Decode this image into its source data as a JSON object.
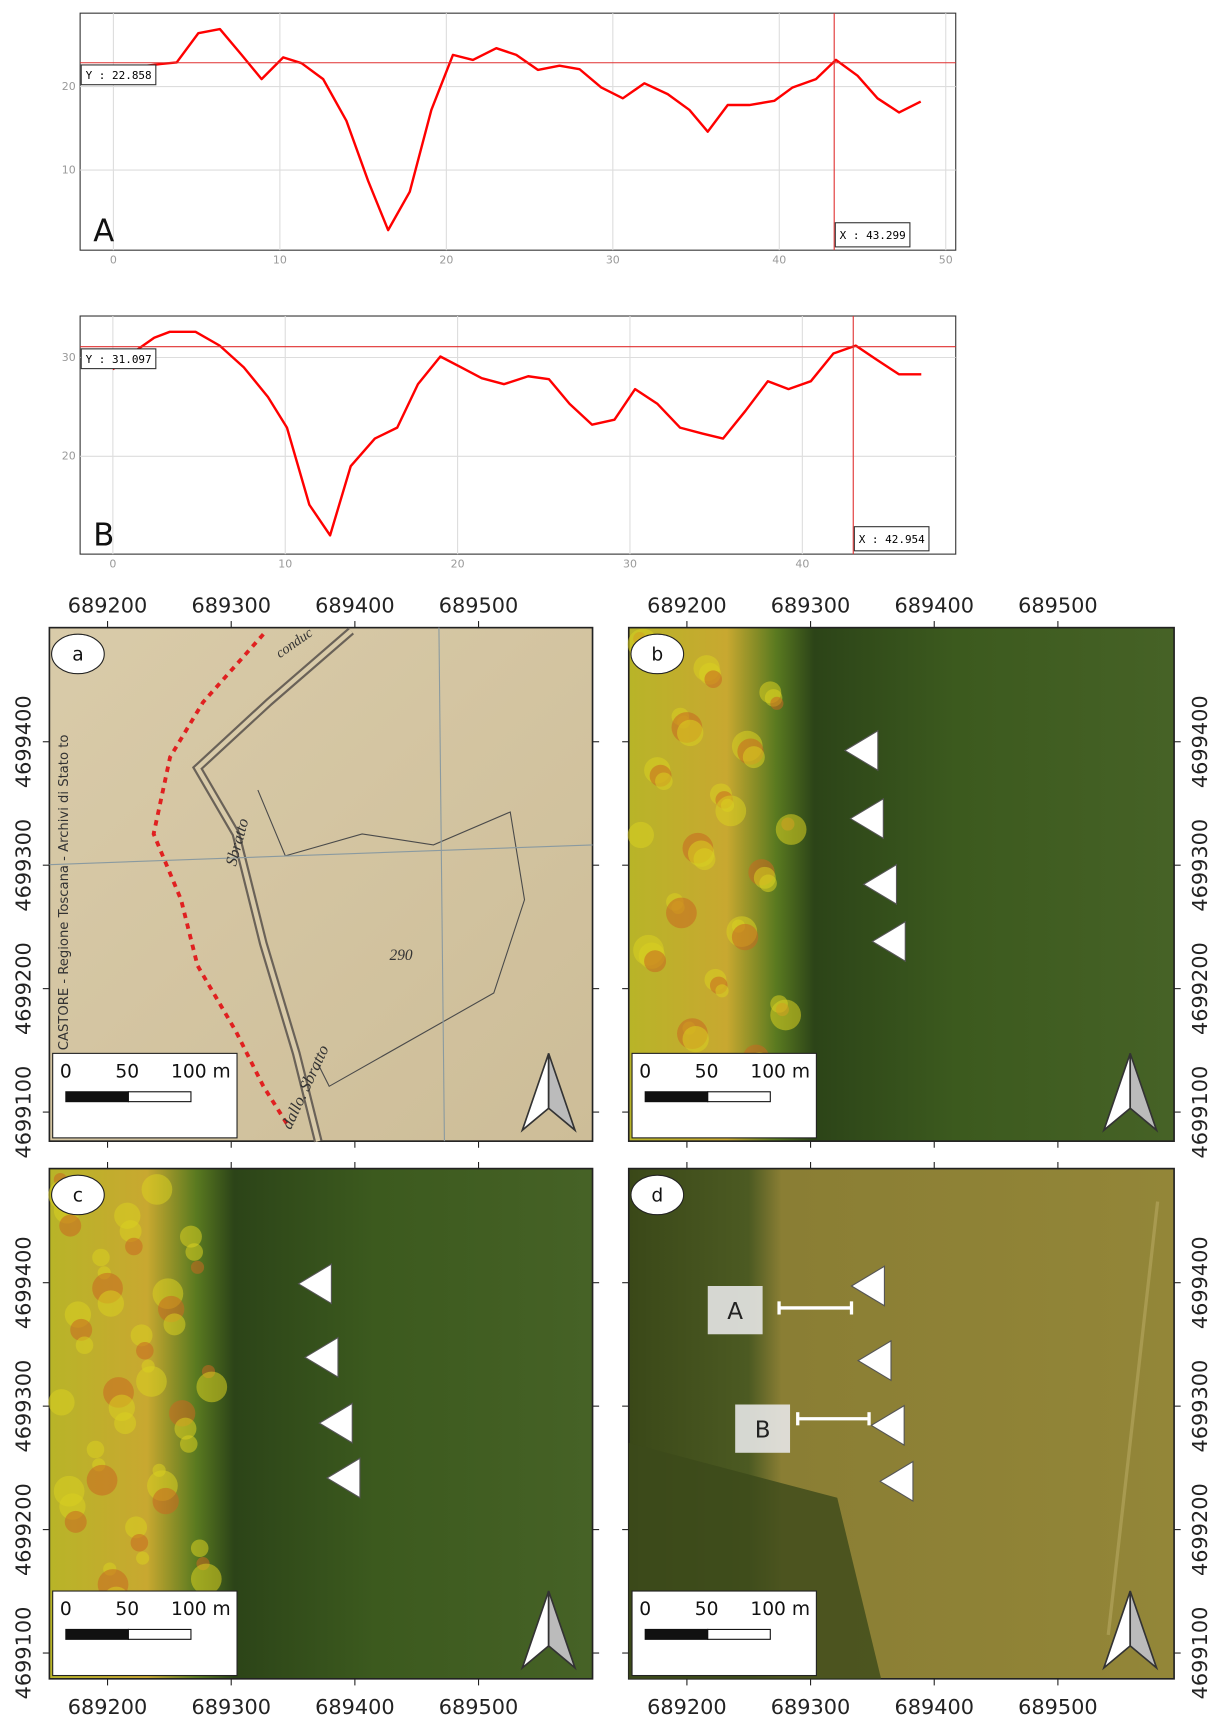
{
  "chart_data": [
    {
      "type": "line",
      "label": "A",
      "xlim": [
        -2,
        50.6
      ],
      "ylim": [
        0.4,
        28.8
      ],
      "xticks": [
        0,
        10,
        20,
        30,
        40,
        50
      ],
      "yticks": [
        10,
        20
      ],
      "grid": true,
      "x": [
        0.8,
        2.8,
        3.8,
        5.1,
        6.4,
        7.7,
        8.9,
        10.2,
        11.3,
        12.6,
        14.0,
        15.3,
        16.5,
        17.8,
        19.1,
        20.4,
        21.6,
        23.0,
        24.2,
        25.5,
        26.8,
        28.0,
        29.3,
        30.6,
        31.9,
        33.3,
        34.6,
        35.7,
        36.9,
        38.2,
        39.7,
        40.8,
        42.2,
        43.4,
        44.7,
        45.9,
        47.2,
        48.5
      ],
      "series": [
        {
          "color": "#ff0000",
          "values": [
            22.2,
            22.7,
            22.9,
            26.4,
            26.9,
            23.8,
            20.9,
            23.5,
            22.8,
            20.9,
            15.9,
            8.7,
            2.8,
            7.4,
            17.2,
            23.8,
            23.2,
            24.6,
            23.8,
            22.0,
            22.5,
            22.1,
            19.9,
            18.6,
            20.4,
            19.1,
            17.2,
            14.6,
            17.8,
            17.8,
            18.3,
            19.9,
            20.9,
            23.2,
            21.3,
            18.6,
            16.9,
            18.2
          ]
        }
      ],
      "cursor": {
        "x": {
          "value": 43.299,
          "label": "X : 43.299"
        },
        "y": {
          "value": 22.858,
          "label": "Y : 22.858"
        }
      }
    },
    {
      "type": "line",
      "label": "B",
      "xlim": [
        -1.9,
        48.9
      ],
      "ylim": [
        10.1,
        34.2
      ],
      "xticks": [
        0,
        10,
        20,
        30,
        40
      ],
      "yticks": [
        20,
        30
      ],
      "grid": true,
      "x": [
        0,
        1.1,
        2.4,
        3.3,
        4.8,
        6.2,
        7.6,
        9.0,
        10.1,
        11.4,
        12.6,
        13.8,
        15.2,
        16.5,
        17.7,
        19.0,
        20.2,
        21.4,
        22.7,
        24.1,
        25.3,
        26.5,
        27.8,
        29.1,
        30.3,
        31.6,
        32.9,
        34.2,
        35.4,
        36.7,
        38.0,
        39.2,
        40.5,
        41.8,
        43.1,
        44.3,
        45.6,
        46.9
      ],
      "series": [
        {
          "color": "#ff0000",
          "values": [
            28.8,
            30.4,
            32.0,
            32.6,
            32.6,
            31.2,
            29.0,
            26.0,
            22.9,
            15.1,
            12.0,
            19.0,
            21.8,
            22.9,
            27.3,
            30.1,
            29.0,
            27.9,
            27.3,
            28.1,
            27.8,
            25.3,
            23.2,
            23.7,
            26.8,
            25.3,
            22.9,
            22.3,
            21.8,
            24.6,
            27.6,
            26.8,
            27.6,
            30.4,
            31.2,
            29.8,
            28.3,
            28.3
          ]
        }
      ],
      "cursor": {
        "x": {
          "value": 42.954,
          "label": "X : 42.954"
        },
        "y": {
          "value": 31.097,
          "label": "Y : 31.097"
        }
      }
    }
  ],
  "maps": {
    "x_labels": [
      "689200",
      "689300",
      "689400",
      "689500"
    ],
    "y_labels": [
      "4699400",
      "4699300",
      "4699200",
      "4699100"
    ],
    "scale_labels": [
      "0",
      "50",
      "100 m"
    ],
    "panels": [
      {
        "label": "a",
        "texts": [
          "conduc",
          "Sbratto",
          "290",
          "dallo. Sbratto",
          "ogetto CASTORE - Regione Toscana - Archivi di Stato to"
        ]
      },
      {
        "label": "b"
      },
      {
        "label": "c"
      },
      {
        "label": "d",
        "markers": [
          "A",
          "B"
        ]
      }
    ]
  }
}
